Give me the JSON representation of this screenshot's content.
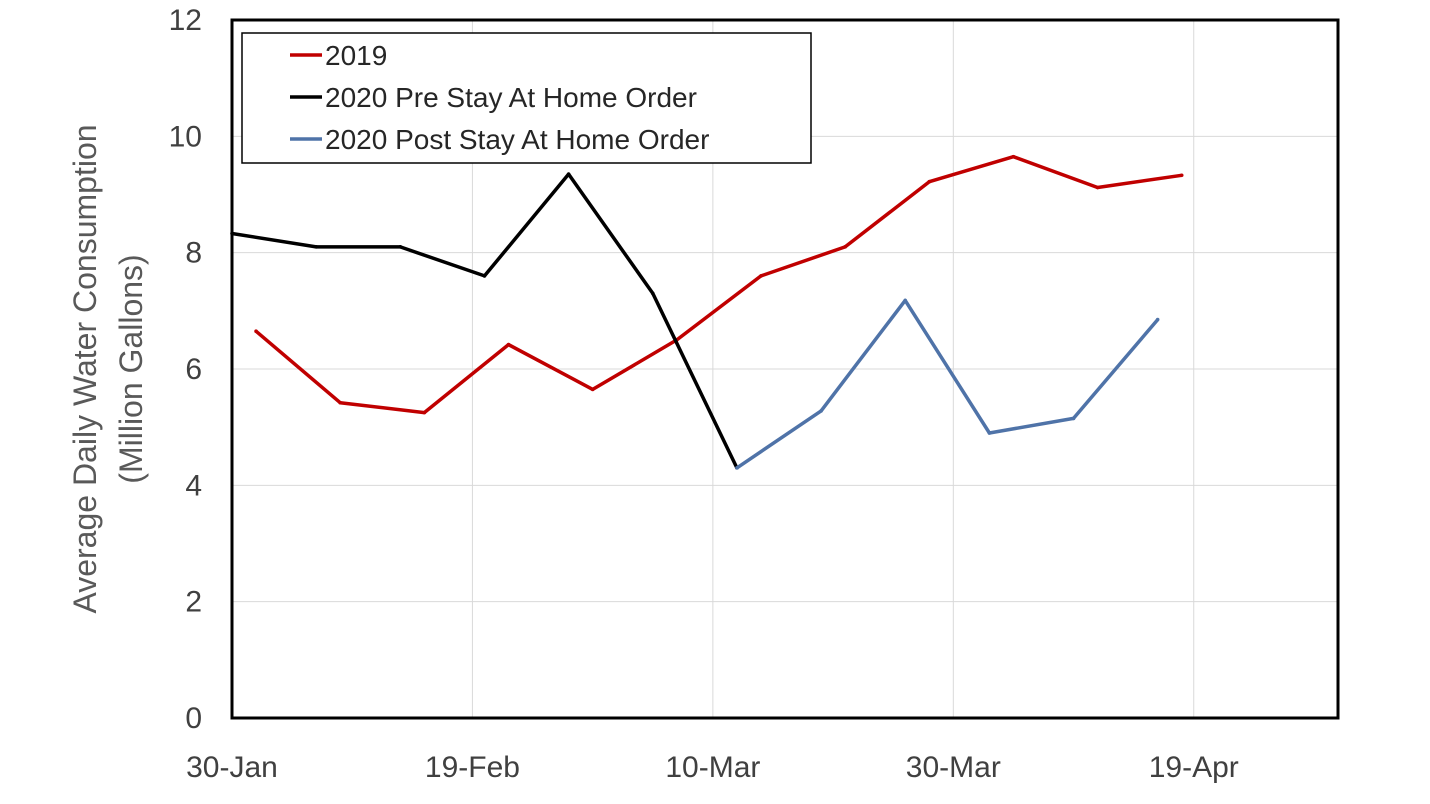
{
  "chart_data": {
    "type": "line",
    "title": "",
    "xlabel": "",
    "ylabel_lines": [
      "Average Daily Water Consumption",
      "(Million Gallons)"
    ],
    "xlim": [
      "2020-01-30",
      "2020-05-01"
    ],
    "ylim": [
      0,
      12
    ],
    "y_ticks": [
      0,
      2,
      4,
      6,
      8,
      10,
      12
    ],
    "x_ticks": [
      {
        "date": "2020-01-30",
        "label": "30-Jan"
      },
      {
        "date": "2020-02-19",
        "label": "19-Feb"
      },
      {
        "date": "2020-03-10",
        "label": "10-Mar"
      },
      {
        "date": "2020-03-30",
        "label": "30-Mar"
      },
      {
        "date": "2020-04-19",
        "label": "19-Apr"
      }
    ],
    "grid": true,
    "legend_position": "top-left",
    "series": [
      {
        "name": "2019",
        "color": "#c00000",
        "points": [
          {
            "x": "2020-02-01",
            "y": 6.65
          },
          {
            "x": "2020-02-08",
            "y": 5.42
          },
          {
            "x": "2020-02-15",
            "y": 5.25
          },
          {
            "x": "2020-02-22",
            "y": 6.42
          },
          {
            "x": "2020-02-29",
            "y": 5.65
          },
          {
            "x": "2020-03-07",
            "y": 6.5
          },
          {
            "x": "2020-03-14",
            "y": 7.6
          },
          {
            "x": "2020-03-21",
            "y": 8.1
          },
          {
            "x": "2020-03-28",
            "y": 9.22
          },
          {
            "x": "2020-04-04",
            "y": 9.65
          },
          {
            "x": "2020-04-11",
            "y": 9.12
          },
          {
            "x": "2020-04-18",
            "y": 9.33
          }
        ]
      },
      {
        "name": "2020 Pre Stay At Home Order",
        "color": "#000000",
        "points": [
          {
            "x": "2020-01-30",
            "y": 8.33
          },
          {
            "x": "2020-02-06",
            "y": 8.1
          },
          {
            "x": "2020-02-13",
            "y": 8.1
          },
          {
            "x": "2020-02-20",
            "y": 7.6
          },
          {
            "x": "2020-02-27",
            "y": 9.35
          },
          {
            "x": "2020-03-05",
            "y": 7.3
          },
          {
            "x": "2020-03-12",
            "y": 4.3
          }
        ]
      },
      {
        "name": "2020 Post Stay At Home Order",
        "color": "#4f73a8",
        "points": [
          {
            "x": "2020-03-12",
            "y": 4.3
          },
          {
            "x": "2020-03-19",
            "y": 5.28
          },
          {
            "x": "2020-03-26",
            "y": 7.18
          },
          {
            "x": "2020-04-02",
            "y": 4.9
          },
          {
            "x": "2020-04-09",
            "y": 5.15
          },
          {
            "x": "2020-04-16",
            "y": 6.85
          }
        ]
      }
    ]
  }
}
